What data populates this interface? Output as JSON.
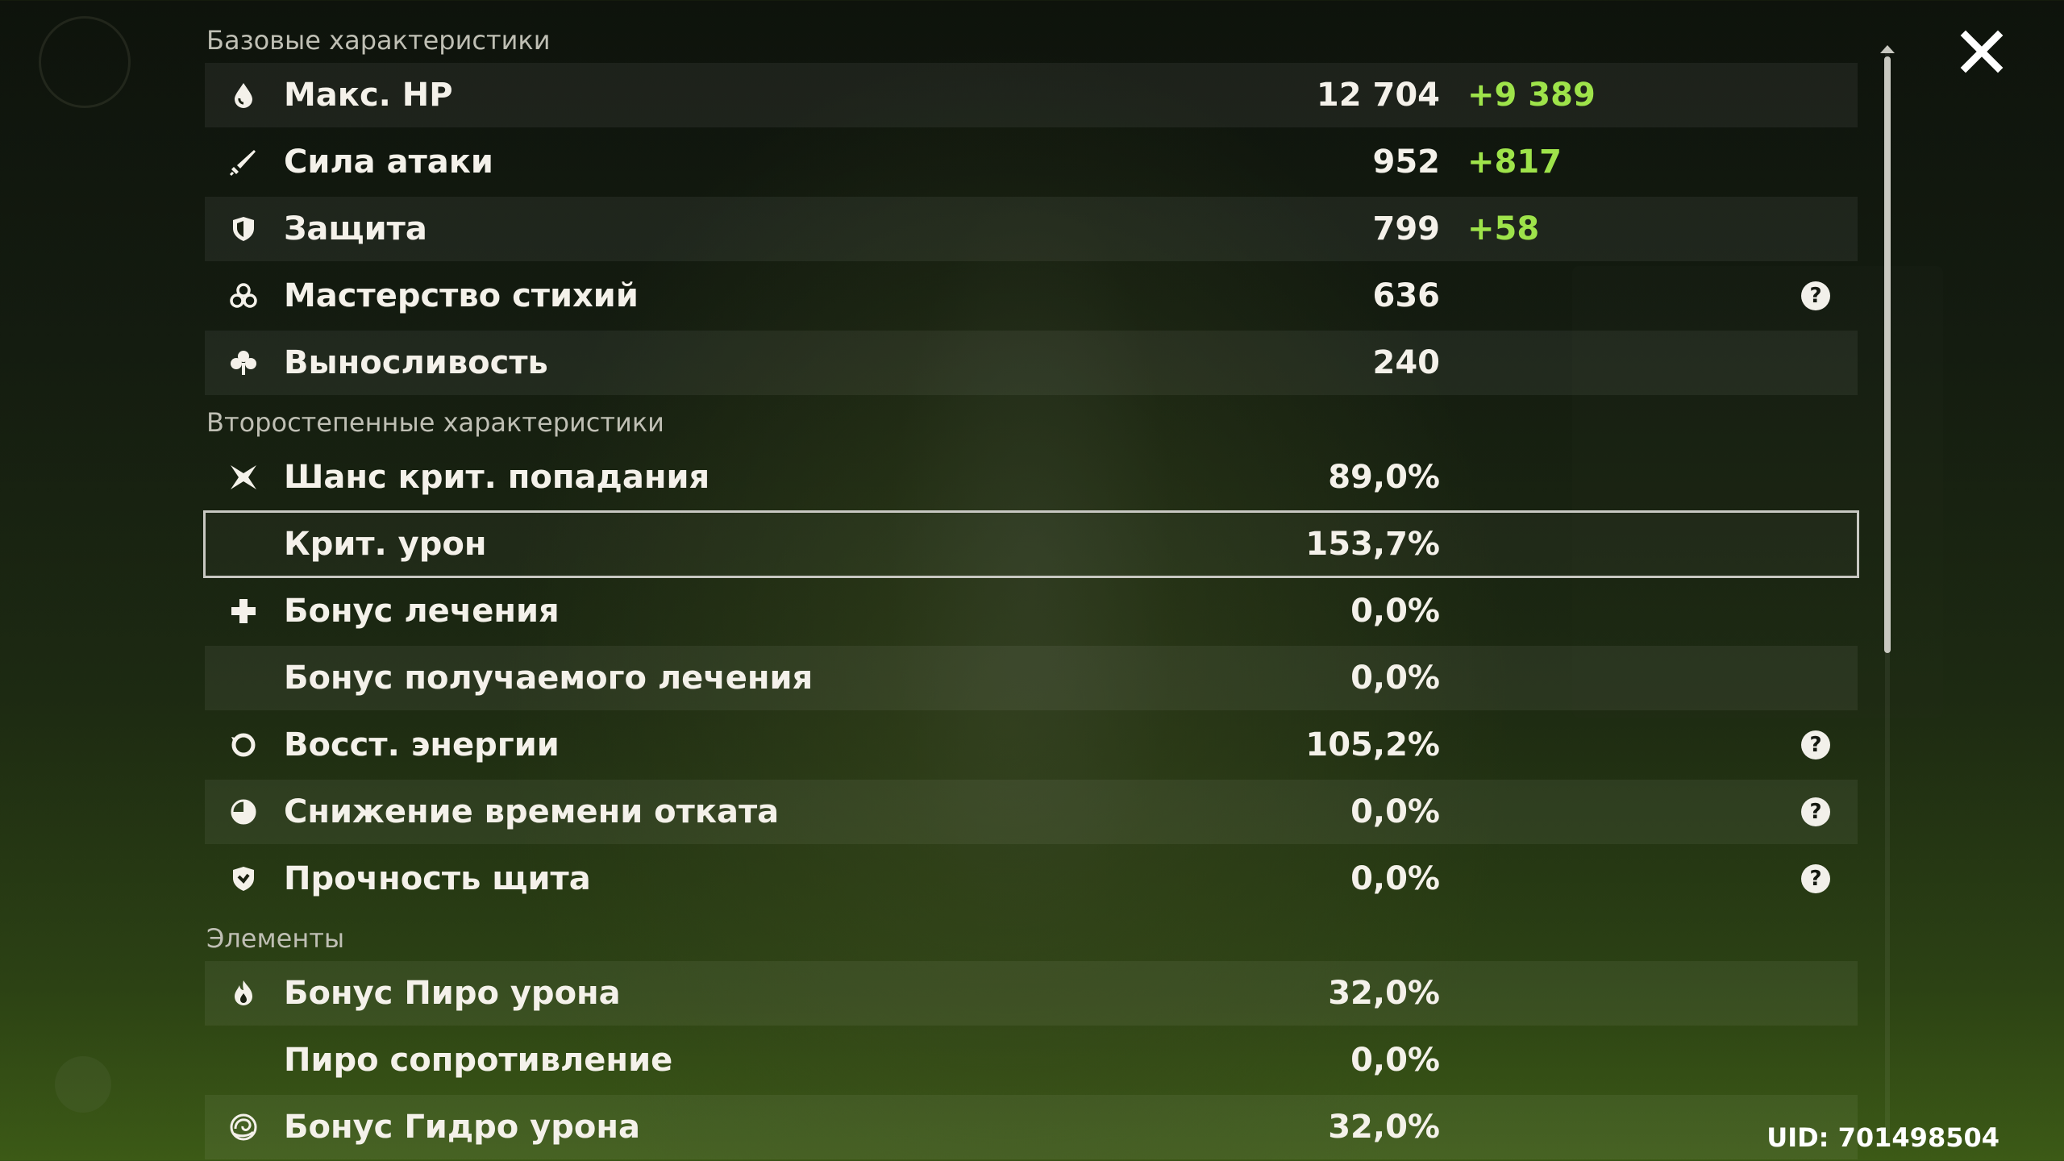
{
  "sections": {
    "base": {
      "title": "Базовые характеристики",
      "rows": [
        {
          "label": "Макс. HP",
          "value": "12 704",
          "bonus": "+9 389",
          "icon": "drop-icon"
        },
        {
          "label": "Сила атаки",
          "value": "952",
          "bonus": "+817",
          "icon": "sword-icon"
        },
        {
          "label": "Защита",
          "value": "799",
          "bonus": "+58",
          "icon": "shield-icon"
        },
        {
          "label": "Мастерство стихий",
          "value": "636",
          "icon": "elemental-mastery-icon",
          "help": true
        },
        {
          "label": "Выносливость",
          "value": "240",
          "icon": "stamina-icon"
        }
      ]
    },
    "advanced": {
      "title": "Второстепенные характеристики",
      "rows": [
        {
          "label": "Шанс крит. попадания",
          "value": "89,0%",
          "icon": "crit-icon"
        },
        {
          "label": "Крит. урон",
          "value": "153,7%"
        },
        {
          "label": "Бонус лечения",
          "value": "0,0%",
          "icon": "healing-cross-icon"
        },
        {
          "label": "Бонус получаемого лечения",
          "value": "0,0%"
        },
        {
          "label": "Восст. энергии",
          "value": "105,2%",
          "icon": "energy-recharge-icon",
          "help": true
        },
        {
          "label": "Снижение времени отката",
          "value": "0,0%",
          "icon": "cooldown-icon",
          "help": true
        },
        {
          "label": "Прочность щита",
          "value": "0,0%",
          "icon": "shield-strength-icon",
          "help": true
        }
      ]
    },
    "elements": {
      "title": "Элементы",
      "rows": [
        {
          "label": "Бонус Пиро урона",
          "value": "32,0%",
          "icon": "pyro-icon"
        },
        {
          "label": "Пиро сопротивление",
          "value": "0,0%"
        },
        {
          "label": "Бонус Гидро урона",
          "value": "32,0%",
          "icon": "hydro-icon"
        }
      ]
    }
  },
  "help_glyph": "?",
  "uid": "UID: 701498504",
  "colors": {
    "bonus": "#9ee34a",
    "text": "#f4f1ea",
    "section_title": "#bfbfb4",
    "highlight_border": "#c8c8c2"
  }
}
